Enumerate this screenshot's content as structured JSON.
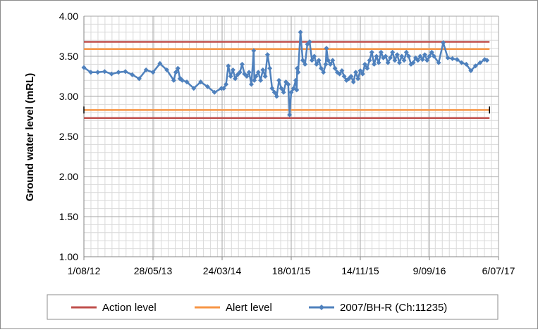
{
  "chart_data": {
    "type": "line",
    "title": "",
    "xlabel": "",
    "ylabel": "Ground water level (mRL)",
    "ylim": [
      1.0,
      4.0
    ],
    "yticks": [
      "1.00",
      "1.50",
      "2.00",
      "2.50",
      "3.00",
      "3.50",
      "4.00"
    ],
    "xlim": [
      "2012-08-01",
      "2017-07-06"
    ],
    "xtick_labels": [
      "1/08/12",
      "28/05/13",
      "24/03/14",
      "18/01/15",
      "14/11/15",
      "9/09/16",
      "6/07/17"
    ],
    "grid": true,
    "legend_position": "bottom",
    "series": [
      {
        "name": "Action level",
        "color": "#c0504d",
        "lines": [
          {
            "x": [
              "2012-08-01",
              "2017-05-28"
            ],
            "y": [
              3.68,
              3.68
            ]
          },
          {
            "x": [
              "2012-08-01",
              "2017-05-28"
            ],
            "y": [
              2.73,
              2.73
            ]
          }
        ]
      },
      {
        "name": "Alert level",
        "color": "#f79646",
        "lines": [
          {
            "x": [
              "2012-08-01",
              "2017-05-28"
            ],
            "y": [
              3.59,
              3.59
            ]
          },
          {
            "x": [
              "2012-08-01",
              "2017-05-28"
            ],
            "y": [
              2.83,
              2.83
            ]
          }
        ]
      },
      {
        "name": "2007/BH-R (Ch:11235)",
        "color": "#4f81bd",
        "marker": "diamond",
        "x": [
          "2012-08-01",
          "2012-08-31",
          "2012-09-30",
          "2012-10-30",
          "2012-11-29",
          "2012-12-29",
          "2013-01-28",
          "2013-02-27",
          "2013-03-29",
          "2013-04-28",
          "2013-05-28",
          "2013-06-27",
          "2013-07-27",
          "2013-08-26",
          "2013-09-04",
          "2013-09-13",
          "2013-09-22",
          "2013-09-25",
          "2013-10-02",
          "2013-10-22",
          "2013-11-21",
          "2013-12-21",
          "2014-01-20",
          "2014-02-19",
          "2014-03-21",
          "2014-03-31",
          "2014-04-10",
          "2014-04-20",
          "2014-04-30",
          "2014-05-10",
          "2014-05-20",
          "2014-05-30",
          "2014-06-09",
          "2014-06-19",
          "2014-06-29",
          "2014-07-09",
          "2014-07-19",
          "2014-07-29",
          "2014-08-08",
          "2014-08-11",
          "2014-08-18",
          "2014-08-28",
          "2014-09-07",
          "2014-09-17",
          "2014-09-27",
          "2014-10-07",
          "2014-10-17",
          "2014-10-27",
          "2014-11-06",
          "2014-11-16",
          "2014-11-26",
          "2014-12-06",
          "2014-12-16",
          "2014-12-26",
          "2015-01-05",
          "2015-01-11",
          "2015-01-18",
          "2015-01-28",
          "2015-02-07",
          "2015-02-11",
          "2015-02-13",
          "2015-02-17",
          "2015-02-27",
          "2015-03-09",
          "2015-03-19",
          "2015-03-29",
          "2015-04-08",
          "2015-04-18",
          "2015-04-28",
          "2015-05-08",
          "2015-05-18",
          "2015-05-28",
          "2015-06-07",
          "2015-06-17",
          "2015-06-20",
          "2015-06-27",
          "2015-07-07",
          "2015-07-17",
          "2015-07-27",
          "2015-08-06",
          "2015-08-16",
          "2015-08-26",
          "2015-09-05",
          "2015-09-15",
          "2015-09-25",
          "2015-10-05",
          "2015-10-15",
          "2015-10-25",
          "2015-11-04",
          "2015-11-14",
          "2015-11-24",
          "2015-12-04",
          "2015-12-14",
          "2015-12-24",
          "2016-01-03",
          "2016-01-13",
          "2016-01-23",
          "2016-02-02",
          "2016-02-12",
          "2016-02-22",
          "2016-03-03",
          "2016-03-13",
          "2016-03-23",
          "2016-04-02",
          "2016-04-12",
          "2016-04-22",
          "2016-05-02",
          "2016-05-12",
          "2016-05-22",
          "2016-06-01",
          "2016-06-11",
          "2016-06-21",
          "2016-07-01",
          "2016-07-11",
          "2016-07-21",
          "2016-07-31",
          "2016-08-10",
          "2016-08-20",
          "2016-08-30",
          "2016-09-09",
          "2016-09-19",
          "2016-09-29",
          "2016-10-19",
          "2016-11-08",
          "2016-11-28",
          "2016-12-18",
          "2017-01-07",
          "2017-01-27",
          "2017-02-16",
          "2017-03-08",
          "2017-03-28",
          "2017-04-17",
          "2017-05-07",
          "2017-05-17"
        ],
        "y": [
          3.36,
          3.3,
          3.3,
          3.31,
          3.28,
          3.3,
          3.31,
          3.27,
          3.22,
          3.33,
          3.3,
          3.41,
          3.33,
          3.2,
          3.3,
          3.35,
          3.22,
          3.22,
          3.2,
          3.18,
          3.1,
          3.18,
          3.12,
          3.05,
          3.1,
          3.1,
          3.15,
          3.38,
          3.25,
          3.33,
          3.22,
          3.27,
          3.3,
          3.4,
          3.28,
          3.25,
          3.3,
          3.15,
          3.57,
          3.2,
          3.25,
          3.3,
          3.2,
          3.33,
          3.25,
          3.52,
          3.35,
          3.1,
          3.05,
          3.0,
          3.2,
          3.1,
          3.05,
          3.18,
          3.15,
          2.77,
          3.05,
          3.1,
          3.2,
          3.08,
          3.35,
          3.3,
          3.8,
          3.45,
          3.4,
          3.65,
          3.68,
          3.45,
          3.5,
          3.4,
          3.45,
          3.35,
          3.3,
          3.4,
          3.6,
          3.45,
          3.4,
          3.45,
          3.35,
          3.3,
          3.28,
          3.32,
          3.25,
          3.2,
          3.22,
          3.25,
          3.18,
          3.3,
          3.22,
          3.32,
          3.28,
          3.4,
          3.35,
          3.45,
          3.55,
          3.4,
          3.5,
          3.42,
          3.55,
          3.48,
          3.5,
          3.42,
          3.48,
          3.55,
          3.45,
          3.52,
          3.42,
          3.5,
          3.45,
          3.55,
          3.5,
          3.4,
          3.42,
          3.48,
          3.45,
          3.5,
          3.46,
          3.52,
          3.45,
          3.5,
          3.55,
          3.5,
          3.42,
          3.67,
          3.48,
          3.47,
          3.46,
          3.42,
          3.4,
          3.32,
          3.38,
          3.42,
          3.46,
          3.45
        ]
      }
    ]
  }
}
